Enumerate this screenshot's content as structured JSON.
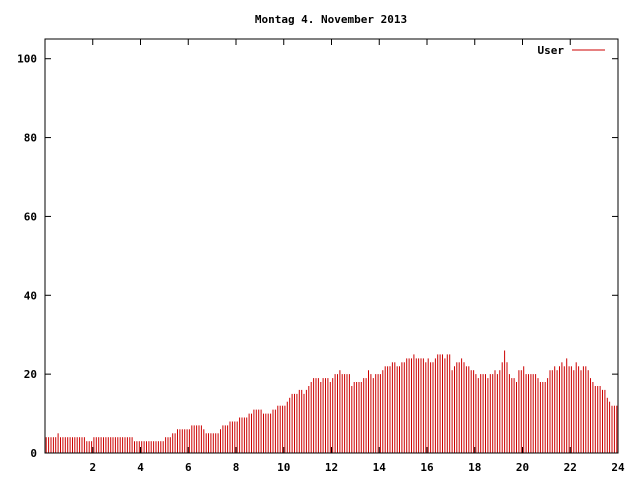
{
  "chart_data": {
    "type": "bar",
    "title": "Montag 4. November 2013",
    "xlabel": "",
    "ylabel": "",
    "xlim": [
      0,
      24
    ],
    "ylim": [
      0,
      105
    ],
    "x_ticks": [
      2,
      4,
      6,
      8,
      10,
      12,
      14,
      16,
      18,
      20,
      22,
      24
    ],
    "x_tick_labels": [
      "2",
      "4",
      "6",
      "8",
      "10",
      "12",
      "14",
      "16",
      "18",
      "20",
      "22",
      "24"
    ],
    "y_ticks": [
      0,
      20,
      40,
      60,
      80,
      100
    ],
    "y_tick_labels": [
      "0",
      "20",
      "40",
      "60",
      "80",
      "100"
    ],
    "grid": false,
    "legend_position": "top-right",
    "series": [
      {
        "name": "User",
        "color": "#cc0000",
        "sample_interval_hours": 0.1,
        "values": [
          4,
          4,
          4,
          4,
          4,
          5,
          4,
          4,
          4,
          4,
          4,
          4,
          4,
          4,
          4,
          4,
          4,
          3,
          3,
          3,
          4,
          4,
          4,
          4,
          4,
          4,
          4,
          4,
          4,
          4,
          4,
          4,
          4,
          4,
          4,
          4,
          4,
          3,
          3,
          3,
          3,
          3,
          3,
          3,
          3,
          3,
          3,
          3,
          3,
          3,
          4,
          4,
          4,
          5,
          5,
          6,
          6,
          6,
          6,
          6,
          6,
          7,
          7,
          7,
          7,
          7,
          6,
          5,
          5,
          5,
          5,
          5,
          5,
          6,
          7,
          7,
          7,
          8,
          8,
          8,
          8,
          9,
          9,
          9,
          9,
          10,
          10,
          11,
          11,
          11,
          11,
          10,
          10,
          10,
          10,
          11,
          11,
          12,
          12,
          12,
          12,
          13,
          14,
          15,
          15,
          15,
          16,
          16,
          15,
          16,
          17,
          18,
          19,
          19,
          19,
          18,
          19,
          19,
          19,
          18,
          19,
          20,
          20,
          21,
          20,
          20,
          20,
          20,
          17,
          18,
          18,
          18,
          18,
          19,
          19,
          21,
          20,
          19,
          20,
          20,
          20,
          21,
          22,
          22,
          22,
          23,
          23,
          22,
          22,
          23,
          23,
          24,
          24,
          24,
          25,
          24,
          24,
          24,
          24,
          23,
          24,
          23,
          23,
          24,
          25,
          25,
          25,
          24,
          25,
          25,
          21,
          22,
          23,
          23,
          24,
          23,
          22,
          22,
          21,
          21,
          20,
          19,
          20,
          20,
          20,
          19,
          20,
          20,
          21,
          20,
          21,
          23,
          26,
          23,
          20,
          19,
          19,
          18,
          21,
          21,
          22,
          20,
          20,
          20,
          20,
          20,
          19,
          18,
          18,
          18,
          19,
          21,
          21,
          22,
          21,
          22,
          23,
          22,
          24,
          22,
          22,
          21,
          23,
          22,
          21,
          22,
          22,
          21,
          19,
          18,
          17,
          17,
          17,
          16,
          16,
          14,
          13,
          12,
          12,
          12,
          12,
          12,
          11
        ]
      }
    ]
  }
}
